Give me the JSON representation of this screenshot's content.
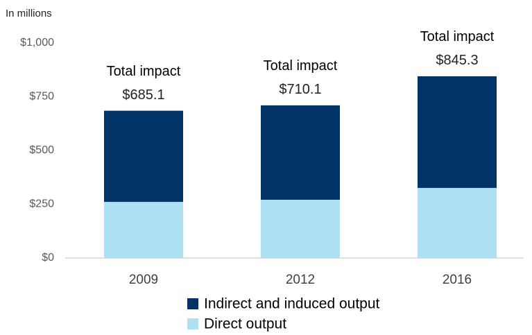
{
  "chart_data": {
    "type": "stacked_bar",
    "subtitle": "In millions",
    "categories": [
      "2009",
      "2012",
      "2016"
    ],
    "series": [
      {
        "name": "Direct output",
        "color": "#aee0f3",
        "values": [
          261,
          271,
          326
        ]
      },
      {
        "name": "Indirect and induced output",
        "color": "#003366",
        "values": [
          424.1,
          439.1,
          519.3
        ]
      }
    ],
    "annotations": [
      {
        "title": "Total impact",
        "label": "$685.1"
      },
      {
        "title": "Total impact",
        "label": "$710.1"
      },
      {
        "title": "Total impact",
        "label": "$845.3"
      }
    ],
    "ylim": [
      0,
      1000
    ],
    "yticks": [
      {
        "value": 0,
        "label": "$0"
      },
      {
        "value": 250,
        "label": "$250"
      },
      {
        "value": 500,
        "label": "$500"
      },
      {
        "value": 750,
        "label": "$750"
      },
      {
        "value": 1000,
        "label": "$1,000"
      }
    ],
    "grid": false,
    "legend": "bottom"
  }
}
